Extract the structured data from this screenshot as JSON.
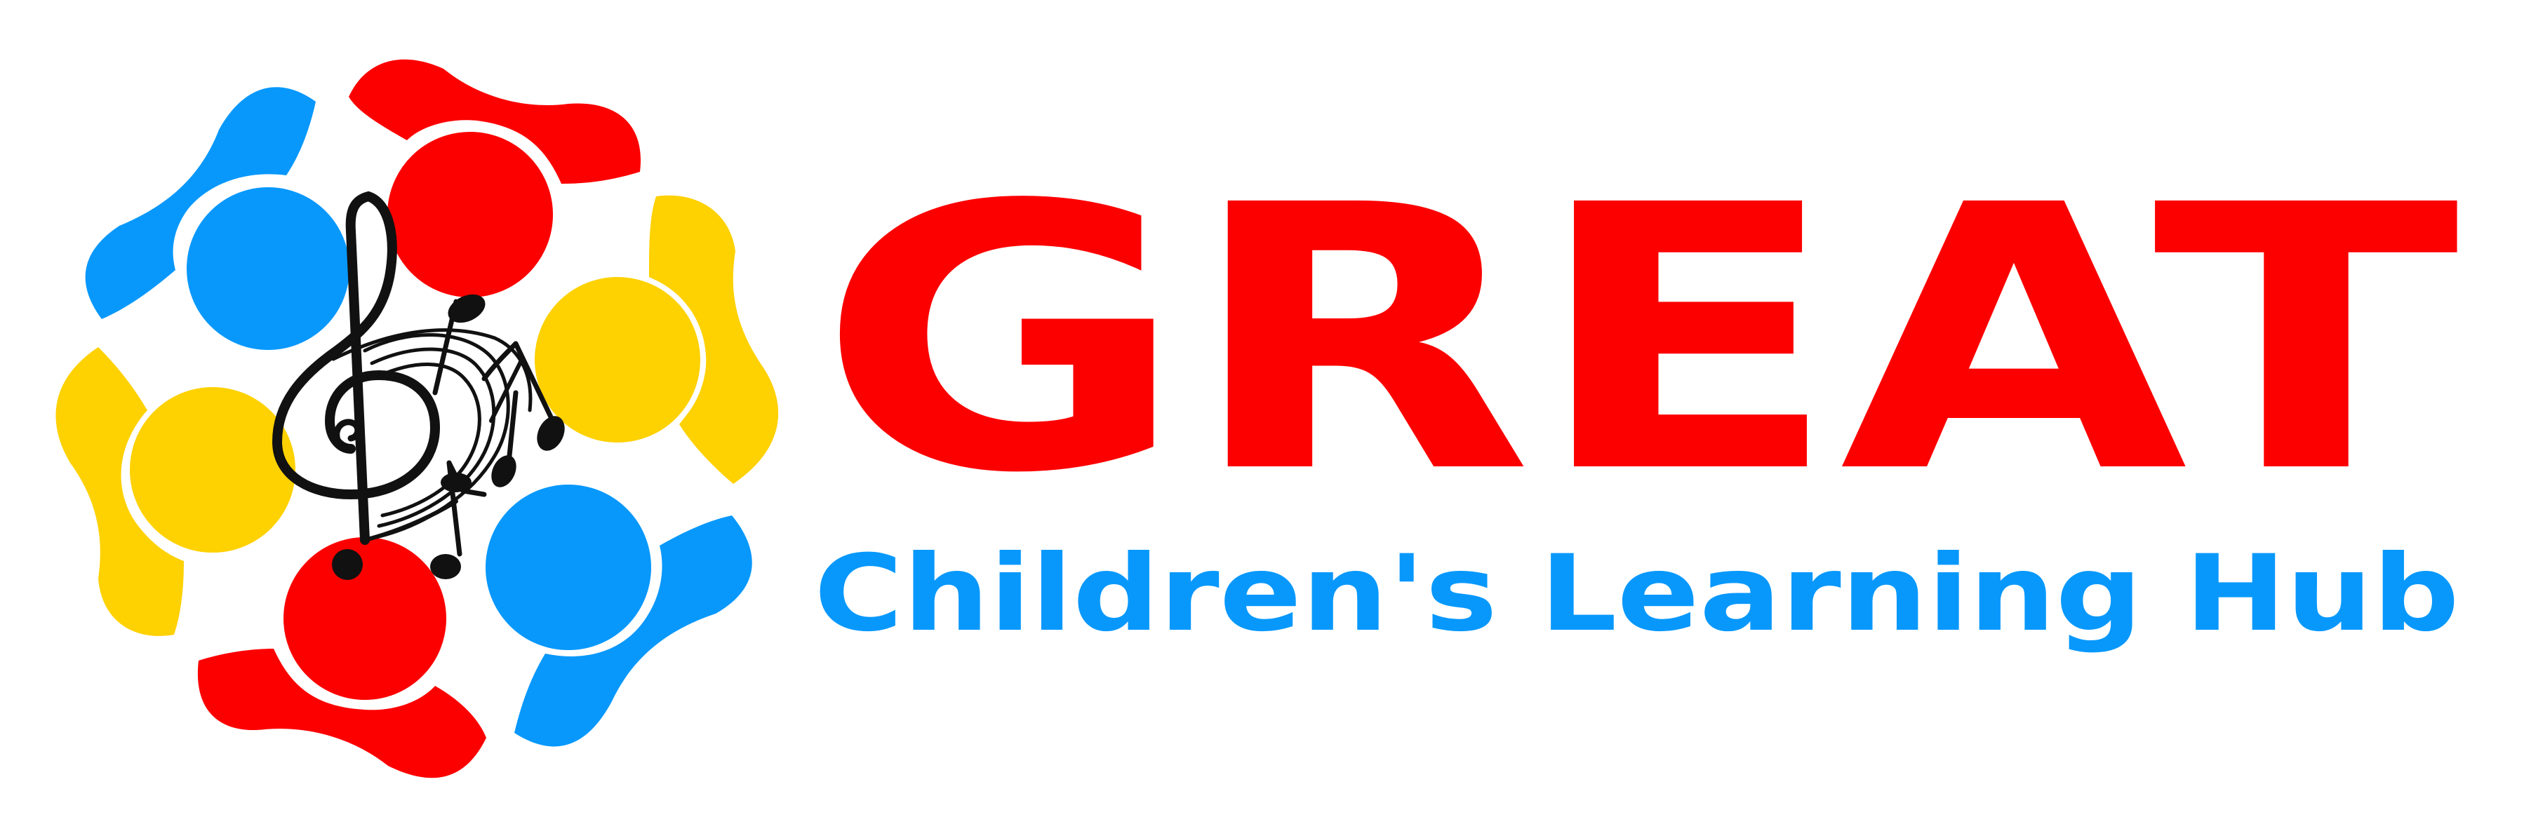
{
  "logo": {
    "title": "GREAT",
    "tagline": "Children's Learning Hub",
    "colors": {
      "red": "#fc0000",
      "blue": "#0898fc",
      "yellow": "#fed100",
      "black": "#111111",
      "background": "#ffffff"
    },
    "emblem": {
      "icon": "treble-clef-with-music-notes-icon",
      "figures": [
        "red-child-figure",
        "yellow-child-figure",
        "blue-child-figure",
        "red-child-figure",
        "blue-child-figure",
        "yellow-child-figure"
      ]
    }
  }
}
